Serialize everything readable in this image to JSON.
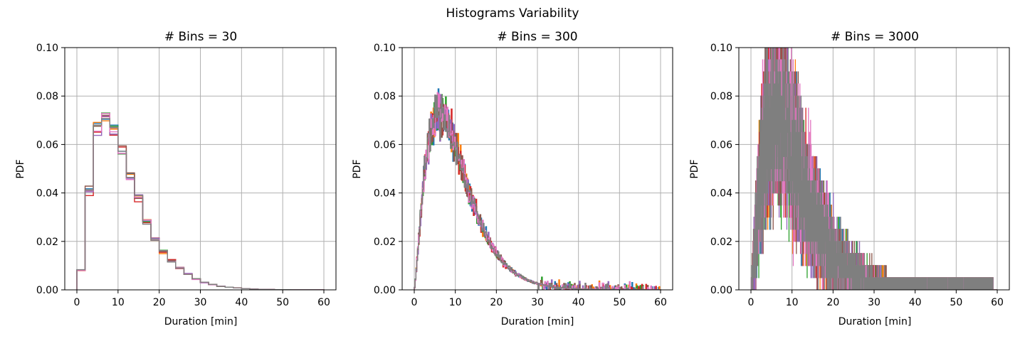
{
  "figure": {
    "suptitle": "Histograms Variability"
  },
  "palette": [
    "#1f77b4",
    "#ff7f0e",
    "#2ca02c",
    "#d62728",
    "#9467bd",
    "#8c564b",
    "#e377c2",
    "#7f7f7f"
  ],
  "chart_data": [
    {
      "type": "histogram-step",
      "title": "# Bins = 30",
      "xlabel": "Duration [min]",
      "ylabel": "PDF",
      "bins": 30,
      "xlim": [
        0,
        60
      ],
      "ylim": [
        0,
        0.1
      ],
      "xticks": [
        0,
        10,
        20,
        30,
        40,
        50,
        60
      ],
      "yticks": [
        0.0,
        0.02,
        0.04,
        0.06,
        0.08,
        0.1
      ],
      "ytick_labels": [
        "0.00",
        "0.02",
        "0.04",
        "0.06",
        "0.08",
        "0.10"
      ],
      "grid": true,
      "series_count": 8,
      "bin_width": 2,
      "mean_density": [
        0.008,
        0.041,
        0.067,
        0.071,
        0.066,
        0.058,
        0.047,
        0.038,
        0.029,
        0.021,
        0.016,
        0.012,
        0.009,
        0.0065,
        0.0045,
        0.003,
        0.0022,
        0.0015,
        0.0011,
        0.0008,
        0.0005,
        0.0003,
        0.0002,
        0.00015,
        0.0001,
        0.0001,
        5e-05,
        5e-05,
        5e-05,
        2e-05
      ]
    },
    {
      "type": "histogram-step",
      "title": "# Bins = 300",
      "xlabel": "Duration [min]",
      "ylabel": "PDF",
      "bins": 300,
      "xlim": [
        0,
        60
      ],
      "ylim": [
        0,
        0.1
      ],
      "xticks": [
        0,
        10,
        20,
        30,
        40,
        50,
        60
      ],
      "yticks": [
        0.0,
        0.02,
        0.04,
        0.06,
        0.08,
        0.1
      ],
      "ytick_labels": [
        "0.00",
        "0.02",
        "0.04",
        "0.06",
        "0.08",
        "0.10"
      ],
      "grid": true,
      "series_count": 8,
      "peak_x": 6,
      "peak_density": 0.075
    },
    {
      "type": "histogram-step",
      "title": "# Bins = 3000",
      "xlabel": "Duration [min]",
      "ylabel": "PDF",
      "bins": 3000,
      "xlim": [
        0,
        60
      ],
      "ylim": [
        0,
        0.1
      ],
      "xticks": [
        0,
        10,
        20,
        30,
        40,
        50,
        60
      ],
      "yticks": [
        0.0,
        0.02,
        0.04,
        0.06,
        0.08,
        0.1
      ],
      "ytick_labels": [
        "0.00",
        "0.02",
        "0.04",
        "0.06",
        "0.08",
        "0.10"
      ],
      "grid": true,
      "series_count": 8,
      "quantum_density": 0.005
    }
  ]
}
